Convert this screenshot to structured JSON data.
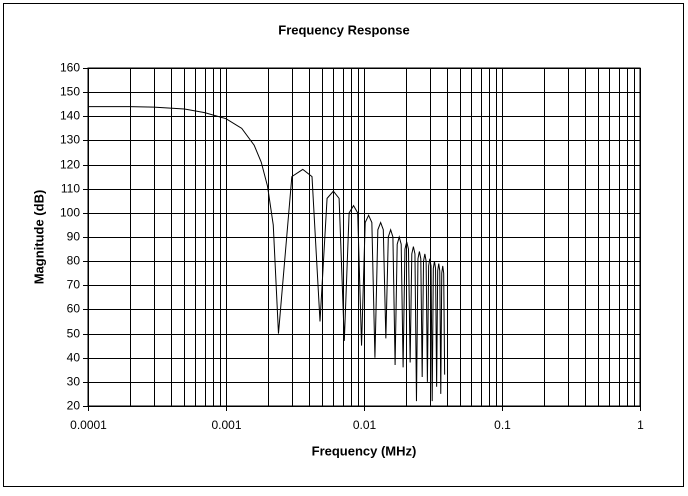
{
  "chart_data": {
    "type": "line",
    "title": "Frequency Response",
    "x_label": "Frequency (MHz)",
    "y_label": "Magnitude (dB)",
    "xscale": "log",
    "xlim": [
      0.0001,
      1
    ],
    "xticks": [
      0.0001,
      0.001,
      0.01,
      0.1,
      1
    ],
    "xminorticks": [
      0.0002,
      0.0003,
      0.0004,
      0.0005,
      0.0006,
      0.0007,
      0.0008,
      0.0009,
      0.002,
      0.003,
      0.004,
      0.005,
      0.006,
      0.007,
      0.008,
      0.009,
      0.02,
      0.03,
      0.04,
      0.05,
      0.06,
      0.07,
      0.08,
      0.09,
      0.2,
      0.3,
      0.4,
      0.5,
      0.6,
      0.7,
      0.8,
      0.9
    ],
    "ylim": [
      20,
      160
    ],
    "yticks": [
      20,
      30,
      40,
      50,
      60,
      70,
      80,
      90,
      100,
      110,
      120,
      130,
      140,
      150,
      160
    ],
    "grid": true,
    "series": [
      {
        "color": "#000000",
        "x": [
          0.0001,
          0.0002,
          0.0003,
          0.0005,
          0.0007,
          0.001,
          0.0013,
          0.0016,
          0.0018,
          0.002,
          0.0022,
          0.0024,
          0.003,
          0.0036,
          0.0042,
          0.0048,
          0.0054,
          0.006,
          0.0066,
          0.0072,
          0.0078,
          0.0084,
          0.009,
          0.0096,
          0.0102,
          0.0108,
          0.0114,
          0.012,
          0.0126,
          0.0132,
          0.0138,
          0.0144,
          0.015,
          0.0156,
          0.0162,
          0.0168,
          0.0174,
          0.018,
          0.0186,
          0.0192,
          0.0198,
          0.0204,
          0.021,
          0.0216,
          0.0222,
          0.0228,
          0.0234,
          0.024,
          0.0246,
          0.0252,
          0.0258,
          0.0264,
          0.027,
          0.0276,
          0.0282,
          0.0288,
          0.0294,
          0.03,
          0.0306,
          0.0312,
          0.0318,
          0.0324,
          0.033,
          0.0336,
          0.0342,
          0.0348,
          0.0354,
          0.036,
          0.0366,
          0.0372,
          0.0378,
          0.0384
        ],
        "values": [
          144,
          144,
          143.8,
          143,
          141.5,
          139,
          135,
          128,
          121,
          111,
          95,
          50,
          115,
          118,
          115,
          55,
          106,
          109,
          106,
          47,
          100,
          103,
          100,
          45,
          96,
          99,
          96,
          40,
          93,
          96,
          93,
          48,
          90,
          93,
          90,
          37,
          87,
          90,
          87,
          36,
          85,
          88,
          85,
          38,
          83,
          86,
          83,
          22,
          81,
          84,
          81,
          32,
          80,
          83,
          80,
          30,
          78,
          81,
          78,
          22,
          77,
          80,
          77,
          28,
          76,
          79,
          76,
          25,
          75,
          78,
          75,
          33
        ]
      }
    ]
  }
}
